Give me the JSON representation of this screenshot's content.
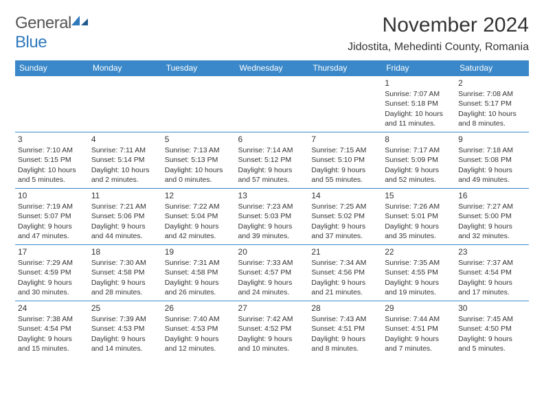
{
  "brand": {
    "name_part1": "General",
    "name_part2": "Blue",
    "color_gray": "#666666",
    "color_blue": "#2f79bd"
  },
  "header": {
    "title": "November 2024",
    "location": "Jidostita, Mehedinti County, Romania"
  },
  "calendar": {
    "type": "table",
    "header_bg": "#3a88c9",
    "header_fg": "#ffffff",
    "border_color": "#3a88c9",
    "columns": [
      "Sunday",
      "Monday",
      "Tuesday",
      "Wednesday",
      "Thursday",
      "Friday",
      "Saturday"
    ],
    "rows": [
      [
        null,
        null,
        null,
        null,
        null,
        {
          "day": "1",
          "sunrise": "Sunrise: 7:07 AM",
          "sunset": "Sunset: 5:18 PM",
          "daylight": "Daylight: 10 hours and 11 minutes."
        },
        {
          "day": "2",
          "sunrise": "Sunrise: 7:08 AM",
          "sunset": "Sunset: 5:17 PM",
          "daylight": "Daylight: 10 hours and 8 minutes."
        }
      ],
      [
        {
          "day": "3",
          "sunrise": "Sunrise: 7:10 AM",
          "sunset": "Sunset: 5:15 PM",
          "daylight": "Daylight: 10 hours and 5 minutes."
        },
        {
          "day": "4",
          "sunrise": "Sunrise: 7:11 AM",
          "sunset": "Sunset: 5:14 PM",
          "daylight": "Daylight: 10 hours and 2 minutes."
        },
        {
          "day": "5",
          "sunrise": "Sunrise: 7:13 AM",
          "sunset": "Sunset: 5:13 PM",
          "daylight": "Daylight: 10 hours and 0 minutes."
        },
        {
          "day": "6",
          "sunrise": "Sunrise: 7:14 AM",
          "sunset": "Sunset: 5:12 PM",
          "daylight": "Daylight: 9 hours and 57 minutes."
        },
        {
          "day": "7",
          "sunrise": "Sunrise: 7:15 AM",
          "sunset": "Sunset: 5:10 PM",
          "daylight": "Daylight: 9 hours and 55 minutes."
        },
        {
          "day": "8",
          "sunrise": "Sunrise: 7:17 AM",
          "sunset": "Sunset: 5:09 PM",
          "daylight": "Daylight: 9 hours and 52 minutes."
        },
        {
          "day": "9",
          "sunrise": "Sunrise: 7:18 AM",
          "sunset": "Sunset: 5:08 PM",
          "daylight": "Daylight: 9 hours and 49 minutes."
        }
      ],
      [
        {
          "day": "10",
          "sunrise": "Sunrise: 7:19 AM",
          "sunset": "Sunset: 5:07 PM",
          "daylight": "Daylight: 9 hours and 47 minutes."
        },
        {
          "day": "11",
          "sunrise": "Sunrise: 7:21 AM",
          "sunset": "Sunset: 5:06 PM",
          "daylight": "Daylight: 9 hours and 44 minutes."
        },
        {
          "day": "12",
          "sunrise": "Sunrise: 7:22 AM",
          "sunset": "Sunset: 5:04 PM",
          "daylight": "Daylight: 9 hours and 42 minutes."
        },
        {
          "day": "13",
          "sunrise": "Sunrise: 7:23 AM",
          "sunset": "Sunset: 5:03 PM",
          "daylight": "Daylight: 9 hours and 39 minutes."
        },
        {
          "day": "14",
          "sunrise": "Sunrise: 7:25 AM",
          "sunset": "Sunset: 5:02 PM",
          "daylight": "Daylight: 9 hours and 37 minutes."
        },
        {
          "day": "15",
          "sunrise": "Sunrise: 7:26 AM",
          "sunset": "Sunset: 5:01 PM",
          "daylight": "Daylight: 9 hours and 35 minutes."
        },
        {
          "day": "16",
          "sunrise": "Sunrise: 7:27 AM",
          "sunset": "Sunset: 5:00 PM",
          "daylight": "Daylight: 9 hours and 32 minutes."
        }
      ],
      [
        {
          "day": "17",
          "sunrise": "Sunrise: 7:29 AM",
          "sunset": "Sunset: 4:59 PM",
          "daylight": "Daylight: 9 hours and 30 minutes."
        },
        {
          "day": "18",
          "sunrise": "Sunrise: 7:30 AM",
          "sunset": "Sunset: 4:58 PM",
          "daylight": "Daylight: 9 hours and 28 minutes."
        },
        {
          "day": "19",
          "sunrise": "Sunrise: 7:31 AM",
          "sunset": "Sunset: 4:58 PM",
          "daylight": "Daylight: 9 hours and 26 minutes."
        },
        {
          "day": "20",
          "sunrise": "Sunrise: 7:33 AM",
          "sunset": "Sunset: 4:57 PM",
          "daylight": "Daylight: 9 hours and 24 minutes."
        },
        {
          "day": "21",
          "sunrise": "Sunrise: 7:34 AM",
          "sunset": "Sunset: 4:56 PM",
          "daylight": "Daylight: 9 hours and 21 minutes."
        },
        {
          "day": "22",
          "sunrise": "Sunrise: 7:35 AM",
          "sunset": "Sunset: 4:55 PM",
          "daylight": "Daylight: 9 hours and 19 minutes."
        },
        {
          "day": "23",
          "sunrise": "Sunrise: 7:37 AM",
          "sunset": "Sunset: 4:54 PM",
          "daylight": "Daylight: 9 hours and 17 minutes."
        }
      ],
      [
        {
          "day": "24",
          "sunrise": "Sunrise: 7:38 AM",
          "sunset": "Sunset: 4:54 PM",
          "daylight": "Daylight: 9 hours and 15 minutes."
        },
        {
          "day": "25",
          "sunrise": "Sunrise: 7:39 AM",
          "sunset": "Sunset: 4:53 PM",
          "daylight": "Daylight: 9 hours and 14 minutes."
        },
        {
          "day": "26",
          "sunrise": "Sunrise: 7:40 AM",
          "sunset": "Sunset: 4:53 PM",
          "daylight": "Daylight: 9 hours and 12 minutes."
        },
        {
          "day": "27",
          "sunrise": "Sunrise: 7:42 AM",
          "sunset": "Sunset: 4:52 PM",
          "daylight": "Daylight: 9 hours and 10 minutes."
        },
        {
          "day": "28",
          "sunrise": "Sunrise: 7:43 AM",
          "sunset": "Sunset: 4:51 PM",
          "daylight": "Daylight: 9 hours and 8 minutes."
        },
        {
          "day": "29",
          "sunrise": "Sunrise: 7:44 AM",
          "sunset": "Sunset: 4:51 PM",
          "daylight": "Daylight: 9 hours and 7 minutes."
        },
        {
          "day": "30",
          "sunrise": "Sunrise: 7:45 AM",
          "sunset": "Sunset: 4:50 PM",
          "daylight": "Daylight: 9 hours and 5 minutes."
        }
      ]
    ]
  }
}
